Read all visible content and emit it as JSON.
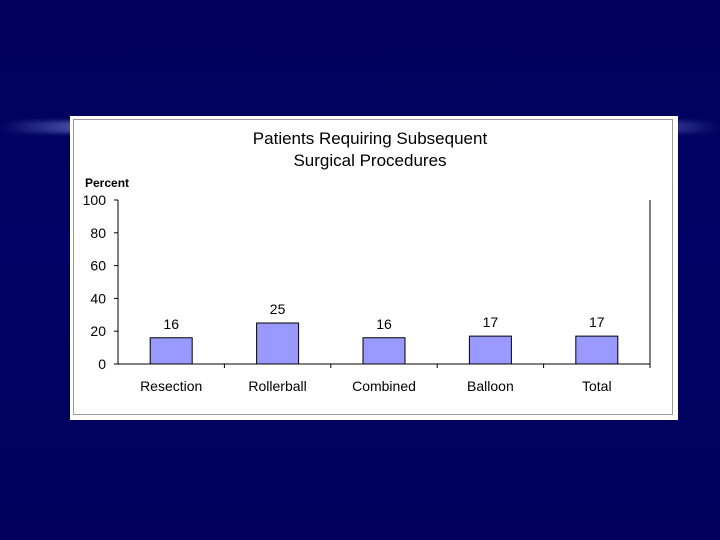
{
  "chart_data": {
    "type": "bar",
    "title_lines": [
      "Patients Requiring Subsequent",
      "Surgical Procedures"
    ],
    "ylabel": "Percent",
    "xlabel": "",
    "categories": [
      "Resection",
      "Rollerball",
      "Combined",
      "Balloon",
      "Total"
    ],
    "values": [
      16,
      25,
      16,
      17,
      17
    ],
    "data_labels": [
      "16",
      "25",
      "16",
      "17",
      "17"
    ],
    "ylim": [
      0,
      100
    ],
    "yticks": [
      0,
      20,
      40,
      60,
      80,
      100
    ],
    "ytick_labels": [
      "0",
      "20",
      "40",
      "60",
      "80",
      "100"
    ],
    "grid": false,
    "legend": "none",
    "bar_color": "#9999ff",
    "bar_edge_color": "#000000"
  }
}
